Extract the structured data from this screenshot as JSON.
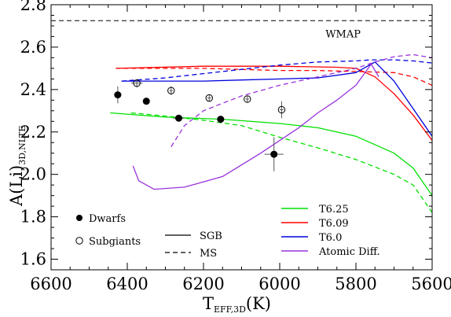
{
  "chart_data": {
    "type": "line",
    "xlabel": "T",
    "xlabel_sub": "EFF,3D",
    "xlabel_unit": "(K)",
    "ylabel": "A(Li)",
    "ylabel_sub": "3D,NLTE",
    "xlim": [
      6600,
      5600
    ],
    "ylim": [
      1.55,
      2.8
    ],
    "xticks": [
      "6600",
      "6400",
      "6200",
      "6000",
      "5800",
      "5600"
    ],
    "yticks": [
      "1.6",
      "1.8",
      "2.0",
      "2.2",
      "2.4",
      "2.6",
      "2.8"
    ],
    "annotation": {
      "text": "WMAP",
      "y": 2.725,
      "line": "dashed",
      "color": "#000000",
      "label_x": 5880,
      "label_y": 2.665
    },
    "dwarfs": [
      {
        "x": 6425,
        "y": 2.375,
        "err_x": 10,
        "err_y": 0.04
      },
      {
        "x": 6350,
        "y": 2.345,
        "err_x": 0,
        "err_y": 0
      },
      {
        "x": 6265,
        "y": 2.265,
        "err_x": 15,
        "err_y": 0.015
      },
      {
        "x": 6155,
        "y": 2.26,
        "err_x": 10,
        "err_y": 0.01
      },
      {
        "x": 6015,
        "y": 2.095,
        "err_x": 25,
        "err_y": 0.08
      }
    ],
    "subgiants": [
      {
        "x": 6375,
        "y": 2.43,
        "err_x": 15,
        "err_y": 0.02
      },
      {
        "x": 6285,
        "y": 2.395,
        "err_x": 5,
        "err_y": 0.02
      },
      {
        "x": 6185,
        "y": 2.36,
        "err_x": 5,
        "err_y": 0.015
      },
      {
        "x": 6085,
        "y": 2.355,
        "err_x": 5,
        "err_y": 0.015
      },
      {
        "x": 5995,
        "y": 2.305,
        "err_x": 5,
        "err_y": 0.04
      }
    ],
    "series": [
      {
        "name": "T6.25",
        "style": "solid",
        "color": "#00e000",
        "points": [
          [
            6445,
            2.29
          ],
          [
            6300,
            2.27
          ],
          [
            6150,
            2.26
          ],
          [
            6000,
            2.24
          ],
          [
            5900,
            2.22
          ],
          [
            5800,
            2.18
          ],
          [
            5700,
            2.1
          ],
          [
            5650,
            2.03
          ],
          [
            5600,
            1.9
          ]
        ]
      },
      {
        "name": "T6.25",
        "style": "dashed",
        "color": "#00e000",
        "points": [
          [
            6390,
            2.29
          ],
          [
            6300,
            2.275
          ],
          [
            6200,
            2.255
          ],
          [
            6100,
            2.23
          ],
          [
            6000,
            2.175
          ],
          [
            5900,
            2.125
          ],
          [
            5800,
            2.07
          ],
          [
            5700,
            2.0
          ],
          [
            5650,
            1.95
          ],
          [
            5600,
            1.82
          ]
        ]
      },
      {
        "name": "T6.09",
        "style": "solid",
        "color": "#ff0000",
        "points": [
          [
            6430,
            2.5
          ],
          [
            6200,
            2.51
          ],
          [
            6000,
            2.51
          ],
          [
            5850,
            2.505
          ],
          [
            5800,
            2.5
          ],
          [
            5750,
            2.46
          ],
          [
            5700,
            2.38
          ],
          [
            5650,
            2.28
          ],
          [
            5600,
            2.16
          ]
        ]
      },
      {
        "name": "T6.09",
        "style": "dashed",
        "color": "#ff0000",
        "points": [
          [
            6430,
            2.5
          ],
          [
            6200,
            2.5
          ],
          [
            6000,
            2.49
          ],
          [
            5900,
            2.49
          ],
          [
            5800,
            2.485
          ],
          [
            5700,
            2.48
          ],
          [
            5650,
            2.46
          ],
          [
            5600,
            2.42
          ]
        ]
      },
      {
        "name": "T6.0",
        "style": "solid",
        "color": "#0000dd",
        "points": [
          [
            6415,
            2.44
          ],
          [
            6300,
            2.44
          ],
          [
            6200,
            2.44
          ],
          [
            6100,
            2.445
          ],
          [
            6000,
            2.45
          ],
          [
            5900,
            2.455
          ],
          [
            5800,
            2.48
          ],
          [
            5750,
            2.53
          ],
          [
            5700,
            2.44
          ],
          [
            5650,
            2.31
          ],
          [
            5600,
            2.18
          ]
        ]
      },
      {
        "name": "T6.0",
        "style": "dashed",
        "color": "#0000dd",
        "points": [
          [
            6415,
            2.44
          ],
          [
            6300,
            2.455
          ],
          [
            6200,
            2.475
          ],
          [
            6100,
            2.495
          ],
          [
            6000,
            2.515
          ],
          [
            5900,
            2.53
          ],
          [
            5800,
            2.535
          ],
          [
            5760,
            2.54
          ],
          [
            5700,
            2.54
          ],
          [
            5650,
            2.535
          ],
          [
            5600,
            2.525
          ]
        ]
      },
      {
        "name": "Atomic Diff.",
        "style": "solid",
        "color": "#9933dd",
        "points": [
          [
            6385,
            2.04
          ],
          [
            6370,
            1.97
          ],
          [
            6330,
            1.93
          ],
          [
            6250,
            1.94
          ],
          [
            6150,
            1.99
          ],
          [
            6050,
            2.1
          ],
          [
            5950,
            2.22
          ],
          [
            5900,
            2.29
          ],
          [
            5850,
            2.35
          ],
          [
            5800,
            2.42
          ],
          [
            5780,
            2.47
          ],
          [
            5760,
            2.52
          ],
          [
            5740,
            2.46
          ]
        ]
      },
      {
        "name": "Atomic Diff.",
        "style": "dashed",
        "color": "#9933dd",
        "points": [
          [
            6285,
            2.13
          ],
          [
            6250,
            2.23
          ],
          [
            6200,
            2.3
          ],
          [
            6100,
            2.37
          ],
          [
            6000,
            2.42
          ],
          [
            5900,
            2.46
          ],
          [
            5800,
            2.5
          ],
          [
            5750,
            2.53
          ],
          [
            5700,
            2.555
          ],
          [
            5650,
            2.565
          ],
          [
            5600,
            2.55
          ]
        ]
      }
    ],
    "legend_symbols": {
      "dwarfs": "Dwarfs",
      "subgiants": "Subgiants"
    },
    "legend_styles": {
      "solid": "SGB",
      "dashed": "MS"
    },
    "legend_models": [
      {
        "name": "T6.25",
        "color": "#00e000"
      },
      {
        "name": "T6.09",
        "color": "#ff0000"
      },
      {
        "name": "T6.0",
        "color": "#0000dd"
      },
      {
        "name": "Atomic Diff.",
        "color": "#9933dd"
      }
    ]
  }
}
